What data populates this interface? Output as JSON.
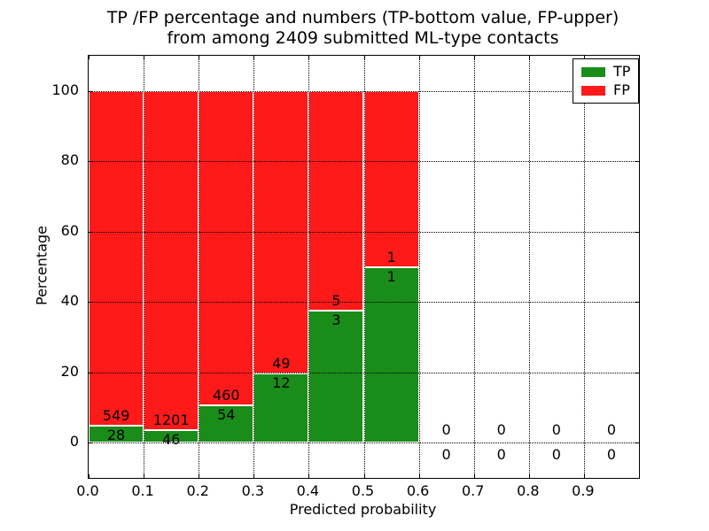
{
  "figure": {
    "title_line1": "TP /FP percentage and numbers (TP-bottom value, FP-upper)",
    "title_line2": "from among 2409 submitted ML-type contacts",
    "background_color": "#ffffff"
  },
  "chart_data": {
    "type": "bar",
    "stacked": true,
    "normalized_to_percent": true,
    "title": "TP /FP percentage and numbers (TP-bottom value, FP-upper)\nfrom among 2409 submitted ML-type contacts",
    "xlabel": "Predicted probability",
    "ylabel": "Percentage",
    "xlim": [
      0.0,
      1.0
    ],
    "ylim": [
      -10,
      110
    ],
    "grid": "dotted",
    "bin_width": 0.1,
    "bin_left_edges": [
      0.0,
      0.1,
      0.2,
      0.3,
      0.4,
      0.5,
      0.6,
      0.7,
      0.8,
      0.9
    ],
    "xtick_labels": [
      "0.0",
      "0.1",
      "0.2",
      "0.3",
      "0.4",
      "0.5",
      "0.6",
      "0.7",
      "0.8",
      "0.9"
    ],
    "ytick_values": [
      0,
      20,
      40,
      60,
      80,
      100
    ],
    "series": [
      {
        "name": "TP",
        "color": "#1a8c1a",
        "position": "bottom",
        "counts": [
          28,
          46,
          54,
          12,
          3,
          1,
          0,
          0,
          0,
          0
        ]
      },
      {
        "name": "FP",
        "color": "#ff1a1a",
        "position": "top",
        "counts": [
          549,
          1201,
          460,
          49,
          5,
          1,
          0,
          0,
          0,
          0
        ]
      }
    ],
    "total_contacts": 2409,
    "legend_position": "upper right"
  },
  "legend": {
    "items": [
      {
        "label": "TP",
        "color": "#1a8c1a"
      },
      {
        "label": "FP",
        "color": "#ff1a1a"
      }
    ]
  }
}
